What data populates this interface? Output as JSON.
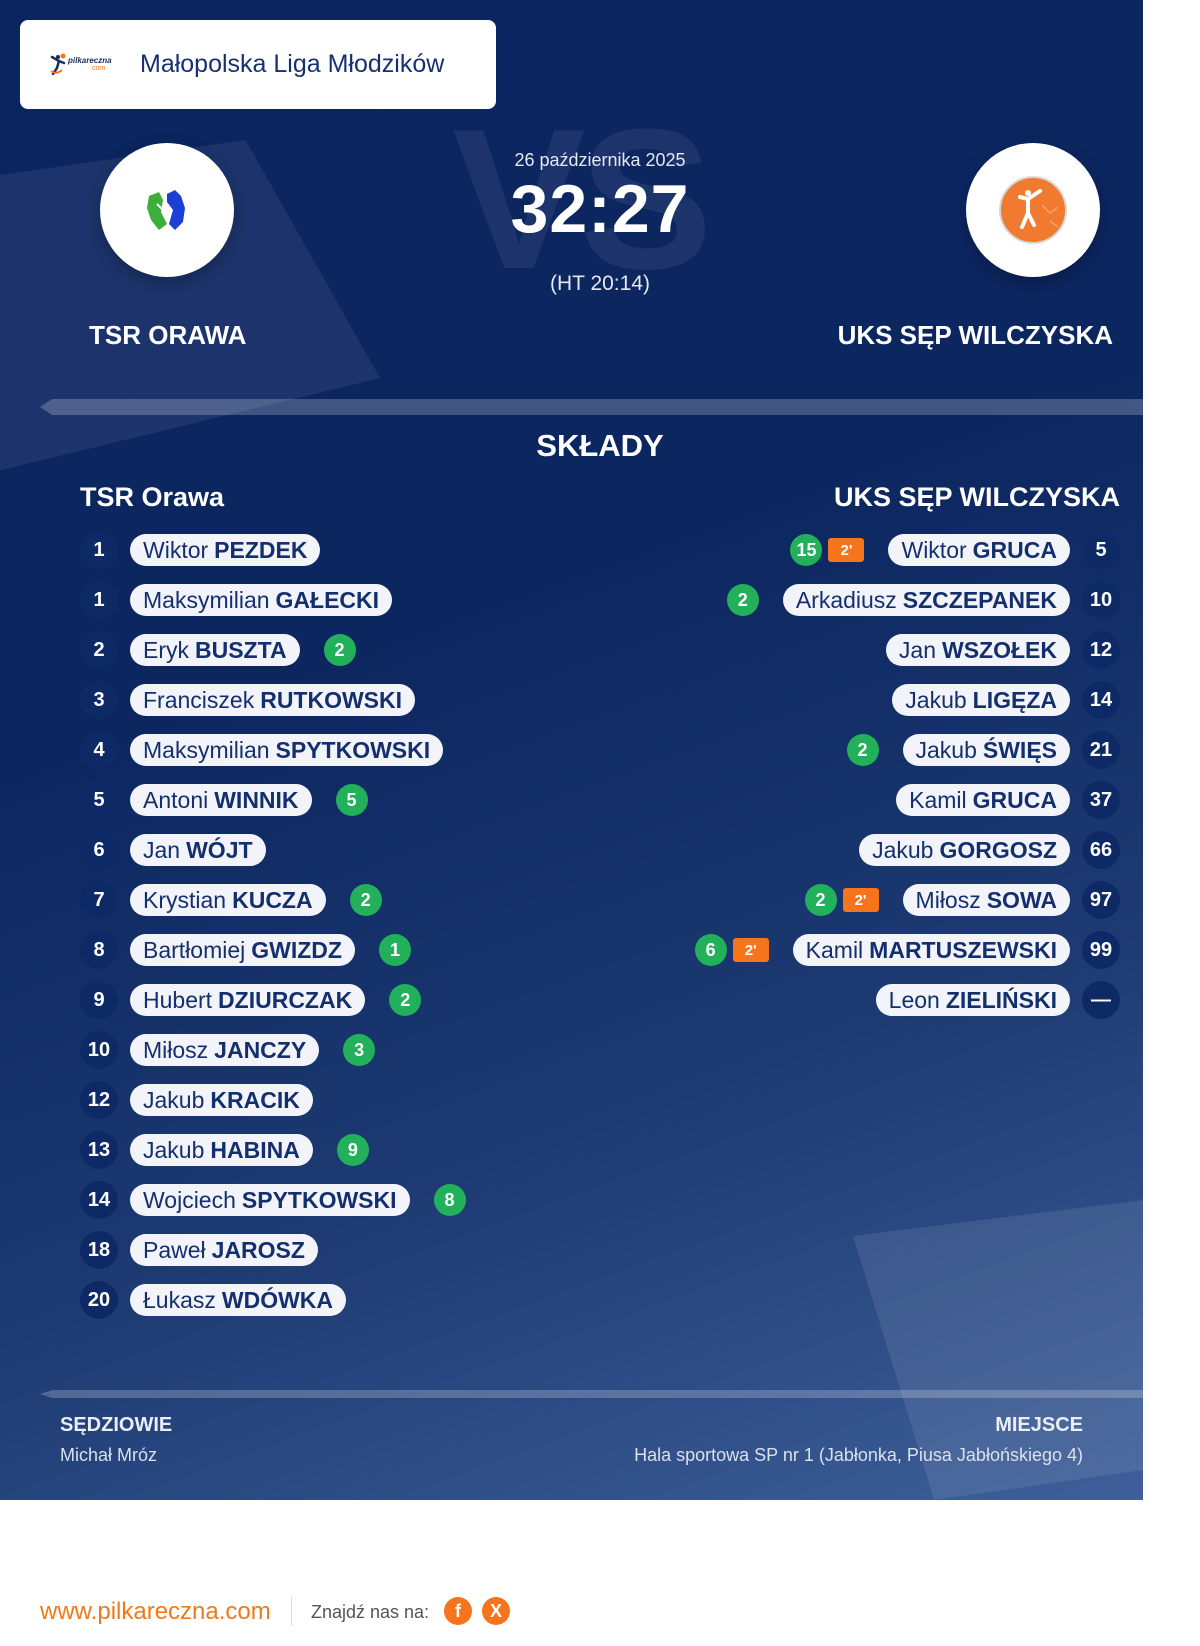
{
  "header": {
    "league_logo_brand": "pilkareczna",
    "league_logo_suffix": ".com",
    "league_title": "Małopolska Liga Młodzików"
  },
  "match": {
    "date": "26 października 2025",
    "score": "32:27",
    "halftime": "(HT 20:14)",
    "watermark": "VS",
    "home_team": "TSR ORAWA",
    "away_team": "UKS SĘP WILCZYSKA",
    "home_logo_colors": [
      "#3cae3a",
      "#1e3fd6"
    ],
    "away_logo_color": "#ef7a30"
  },
  "lineups": {
    "title": "SKŁADY",
    "home": {
      "name": "TSR Orawa",
      "players": [
        {
          "number": "1",
          "first": "Wiktor",
          "last": "PEZDEK",
          "goals": "",
          "suspension": ""
        },
        {
          "number": "1",
          "first": "Maksymilian",
          "last": "GAŁECKI",
          "goals": "",
          "suspension": ""
        },
        {
          "number": "2",
          "first": "Eryk",
          "last": "BUSZTA",
          "goals": "2",
          "suspension": ""
        },
        {
          "number": "3",
          "first": "Franciszek",
          "last": "RUTKOWSKI",
          "goals": "",
          "suspension": ""
        },
        {
          "number": "4",
          "first": "Maksymilian",
          "last": "SPYTKOWSKI",
          "goals": "",
          "suspension": ""
        },
        {
          "number": "5",
          "first": "Antoni",
          "last": "WINNIK",
          "goals": "5",
          "suspension": ""
        },
        {
          "number": "6",
          "first": "Jan",
          "last": "WÓJT",
          "goals": "",
          "suspension": ""
        },
        {
          "number": "7",
          "first": "Krystian",
          "last": "KUCZA",
          "goals": "2",
          "suspension": ""
        },
        {
          "number": "8",
          "first": "Bartłomiej",
          "last": "GWIZDZ",
          "goals": "1",
          "suspension": ""
        },
        {
          "number": "9",
          "first": "Hubert",
          "last": "DZIURCZAK",
          "goals": "2",
          "suspension": ""
        },
        {
          "number": "10",
          "first": "Miłosz",
          "last": "JANCZY",
          "goals": "3",
          "suspension": ""
        },
        {
          "number": "12",
          "first": "Jakub",
          "last": "KRACIK",
          "goals": "",
          "suspension": ""
        },
        {
          "number": "13",
          "first": "Jakub",
          "last": "HABINA",
          "goals": "9",
          "suspension": ""
        },
        {
          "number": "14",
          "first": "Wojciech",
          "last": "SPYTKOWSKI",
          "goals": "8",
          "suspension": ""
        },
        {
          "number": "18",
          "first": "Paweł",
          "last": "JAROSZ",
          "goals": "",
          "suspension": ""
        },
        {
          "number": "20",
          "first": "Łukasz",
          "last": "WDÓWKA",
          "goals": "",
          "suspension": ""
        }
      ]
    },
    "away": {
      "name": "UKS SĘP WILCZYSKA",
      "players": [
        {
          "number": "5",
          "first": "Wiktor",
          "last": "GRUCA",
          "goals": "15",
          "suspension": "2'"
        },
        {
          "number": "10",
          "first": "Arkadiusz",
          "last": "SZCZEPANEK",
          "goals": "2",
          "suspension": ""
        },
        {
          "number": "12",
          "first": "Jan",
          "last": "WSZOŁEK",
          "goals": "",
          "suspension": ""
        },
        {
          "number": "14",
          "first": "Jakub",
          "last": "LIGĘZA",
          "goals": "",
          "suspension": ""
        },
        {
          "number": "21",
          "first": "Jakub",
          "last": "ŚWIĘS",
          "goals": "2",
          "suspension": ""
        },
        {
          "number": "37",
          "first": "Kamil",
          "last": "GRUCA",
          "goals": "",
          "suspension": ""
        },
        {
          "number": "66",
          "first": "Jakub",
          "last": "GORGOSZ",
          "goals": "",
          "suspension": ""
        },
        {
          "number": "97",
          "first": "Miłosz",
          "last": "SOWA",
          "goals": "2",
          "suspension": "2'"
        },
        {
          "number": "99",
          "first": "Kamil",
          "last": "MARTUSZEWSKI",
          "goals": "6",
          "suspension": "2'"
        },
        {
          "number": "—",
          "first": "Leon",
          "last": "ZIELIŃSKI",
          "goals": "",
          "suspension": ""
        }
      ]
    }
  },
  "officials": {
    "referees_label": "SĘDZIOWIE",
    "referees_value": "Michał Mróz",
    "venue_label": "MIEJSCE",
    "venue_value": "Hala sportowa SP nr 1 (Jabłonka, Piusa Jabłońskiego 4)"
  },
  "footer": {
    "site": "www.pilkareczna.com",
    "find_us": "Znajdź nas na:",
    "facebook_glyph": "f",
    "x_glyph": "X"
  },
  "colors": {
    "background_dark": "#0b2560",
    "goal_badge": "#22b15a",
    "suspension_badge": "#f5741c",
    "accent_orange": "#f07a1a"
  }
}
